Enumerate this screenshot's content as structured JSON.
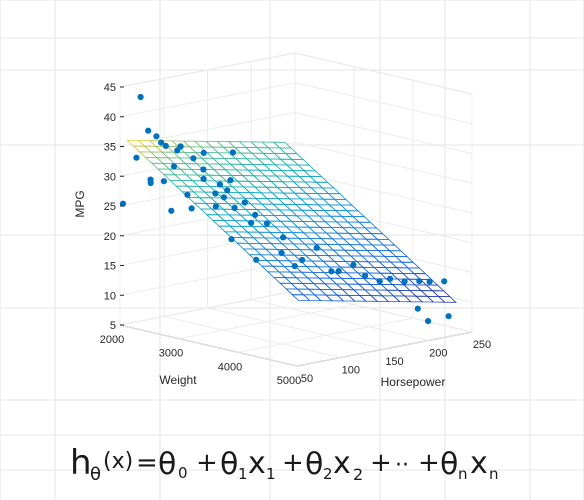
{
  "chart_data": {
    "type": "scatter",
    "subtype": "3d-scatter-with-regression-surface",
    "title": "",
    "xlabel": "Weight",
    "ylabel": "Horsepower",
    "zlabel": "MPG",
    "xlim": [
      2000,
      5000
    ],
    "ylim": [
      50,
      250
    ],
    "zlim": [
      5,
      45
    ],
    "xticks": [
      "2000",
      "3000",
      "4000",
      "5000"
    ],
    "yticks": [
      "50",
      "100",
      "150",
      "200",
      "250"
    ],
    "zticks": [
      "5",
      "10",
      "15",
      "20",
      "25",
      "30",
      "35",
      "40",
      "45"
    ],
    "grid": true,
    "marker_color": "#0072BD",
    "surface_colormap": "parula",
    "surface": {
      "z_at_min_weight_min_hp": 36.5,
      "z_at_max_weight_max_hp": 9.5
    },
    "points": [
      {
        "x": 2050,
        "y": 50,
        "z": 25.5
      },
      {
        "x": 2100,
        "y": 62,
        "z": 33
      },
      {
        "x": 2200,
        "y": 60,
        "z": 43.5
      },
      {
        "x": 2150,
        "y": 75,
        "z": 28.5
      },
      {
        "x": 2250,
        "y": 68,
        "z": 29.5
      },
      {
        "x": 2300,
        "y": 62,
        "z": 38
      },
      {
        "x": 2350,
        "y": 68,
        "z": 37
      },
      {
        "x": 2400,
        "y": 70,
        "z": 36
      },
      {
        "x": 2450,
        "y": 72,
        "z": 35.5
      },
      {
        "x": 2300,
        "y": 80,
        "z": 29
      },
      {
        "x": 2350,
        "y": 85,
        "z": 24
      },
      {
        "x": 2500,
        "y": 78,
        "z": 32
      },
      {
        "x": 2600,
        "y": 75,
        "z": 35
      },
      {
        "x": 2550,
        "y": 90,
        "z": 27
      },
      {
        "x": 2700,
        "y": 72,
        "z": 36
      },
      {
        "x": 2650,
        "y": 88,
        "z": 25
      },
      {
        "x": 2800,
        "y": 80,
        "z": 34
      },
      {
        "x": 2750,
        "y": 95,
        "z": 30
      },
      {
        "x": 2850,
        "y": 88,
        "z": 32
      },
      {
        "x": 2900,
        "y": 85,
        "z": 35
      },
      {
        "x": 2950,
        "y": 95,
        "z": 28
      },
      {
        "x": 3000,
        "y": 92,
        "z": 26
      },
      {
        "x": 3050,
        "y": 98,
        "z": 27.5
      },
      {
        "x": 3100,
        "y": 90,
        "z": 30
      },
      {
        "x": 3150,
        "y": 95,
        "z": 29
      },
      {
        "x": 3200,
        "y": 100,
        "z": 26
      },
      {
        "x": 3000,
        "y": 110,
        "z": 20
      },
      {
        "x": 3250,
        "y": 92,
        "z": 31
      },
      {
        "x": 3300,
        "y": 105,
        "z": 27
      },
      {
        "x": 3350,
        "y": 88,
        "z": 36
      },
      {
        "x": 3400,
        "y": 110,
        "z": 25
      },
      {
        "x": 3450,
        "y": 102,
        "z": 24
      },
      {
        "x": 3300,
        "y": 118,
        "z": 17
      },
      {
        "x": 3600,
        "y": 110,
        "z": 24
      },
      {
        "x": 3700,
        "y": 120,
        "z": 19
      },
      {
        "x": 3800,
        "y": 115,
        "z": 22
      },
      {
        "x": 3850,
        "y": 125,
        "z": 17
      },
      {
        "x": 3900,
        "y": 130,
        "z": 18
      },
      {
        "x": 4000,
        "y": 140,
        "z": 20
      },
      {
        "x": 4100,
        "y": 150,
        "z": 16
      },
      {
        "x": 4150,
        "y": 155,
        "z": 16
      },
      {
        "x": 4250,
        "y": 165,
        "z": 17
      },
      {
        "x": 4300,
        "y": 175,
        "z": 15
      },
      {
        "x": 4400,
        "y": 185,
        "z": 14
      },
      {
        "x": 4500,
        "y": 190,
        "z": 14.5
      },
      {
        "x": 4600,
        "y": 200,
        "z": 14
      },
      {
        "x": 4700,
        "y": 210,
        "z": 14
      },
      {
        "x": 4800,
        "y": 215,
        "z": 14
      },
      {
        "x": 4900,
        "y": 225,
        "z": 14
      },
      {
        "x": 4600,
        "y": 215,
        "z": 9
      },
      {
        "x": 4700,
        "y": 220,
        "z": 7
      },
      {
        "x": 4900,
        "y": 230,
        "z": 8
      }
    ]
  },
  "formula": {
    "h": "h",
    "h_sub": "θ",
    "arg": "(x)",
    "eq": "=",
    "t0": "θ",
    "t0_sub": "0",
    "plus1": "+",
    "t1": "θ",
    "t1_sub": "1",
    "x1": "x",
    "x1_sub": "1",
    "plus2": "+",
    "t2": "θ",
    "t2_sub": "2",
    "x2": "x",
    "x2_sub": "2",
    "plus3": "+",
    "dots": "··",
    "plus4": "+",
    "tn": "θ",
    "tn_sub": "n",
    "xn": "x",
    "xn_sub": "n"
  }
}
